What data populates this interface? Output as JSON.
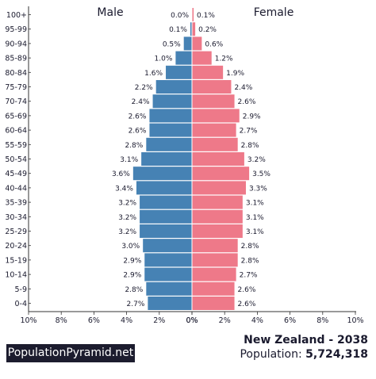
{
  "chart_data": {
    "type": "bar",
    "orientation": "horizontal-pyramid",
    "left_label": "Male",
    "right_label": "Female",
    "categories": [
      "100+",
      "95-99",
      "90-94",
      "85-89",
      "80-84",
      "75-79",
      "70-74",
      "65-69",
      "60-64",
      "55-59",
      "50-54",
      "45-49",
      "40-44",
      "35-39",
      "30-34",
      "25-29",
      "20-24",
      "15-19",
      "10-14",
      "5-9",
      "0-4"
    ],
    "series": [
      {
        "name": "Male",
        "color": "#4682b4",
        "values": [
          0.0,
          0.1,
          0.5,
          1.0,
          1.6,
          2.2,
          2.4,
          2.6,
          2.6,
          2.8,
          3.1,
          3.6,
          3.4,
          3.2,
          3.2,
          3.2,
          3.0,
          2.9,
          2.9,
          2.8,
          2.7
        ],
        "labels": [
          "0.0%",
          "0.1%",
          "0.5%",
          "1.0%",
          "1.6%",
          "2.2%",
          "2.4%",
          "2.6%",
          "2.6%",
          "2.8%",
          "3.1%",
          "3.6%",
          "3.4%",
          "3.2%",
          "3.2%",
          "3.2%",
          "3.0%",
          "2.9%",
          "2.9%",
          "2.8%",
          "2.7%"
        ]
      },
      {
        "name": "Female",
        "color": "#ee7989",
        "values": [
          0.1,
          0.2,
          0.6,
          1.2,
          1.9,
          2.4,
          2.6,
          2.9,
          2.7,
          2.8,
          3.2,
          3.5,
          3.3,
          3.1,
          3.1,
          3.1,
          2.8,
          2.8,
          2.7,
          2.6,
          2.6
        ],
        "labels": [
          "0.1%",
          "0.2%",
          "0.6%",
          "1.2%",
          "1.9%",
          "2.4%",
          "2.6%",
          "2.9%",
          "2.7%",
          "2.8%",
          "3.2%",
          "3.5%",
          "3.3%",
          "3.1%",
          "3.1%",
          "3.1%",
          "2.8%",
          "2.8%",
          "2.7%",
          "2.6%",
          "2.6%"
        ]
      }
    ],
    "xlim": [
      0,
      10
    ],
    "left_ticks": [
      "10%",
      "8%",
      "6%",
      "4%",
      "2%",
      "0%"
    ],
    "right_ticks": [
      "0%",
      "2%",
      "4%",
      "6%",
      "8%",
      "10%"
    ],
    "grid": false
  },
  "footer": {
    "brand": "PopulationPyramid.net",
    "country": "New Zealand - 2038",
    "population_label": "Population:",
    "population_value": "5,724,318"
  }
}
